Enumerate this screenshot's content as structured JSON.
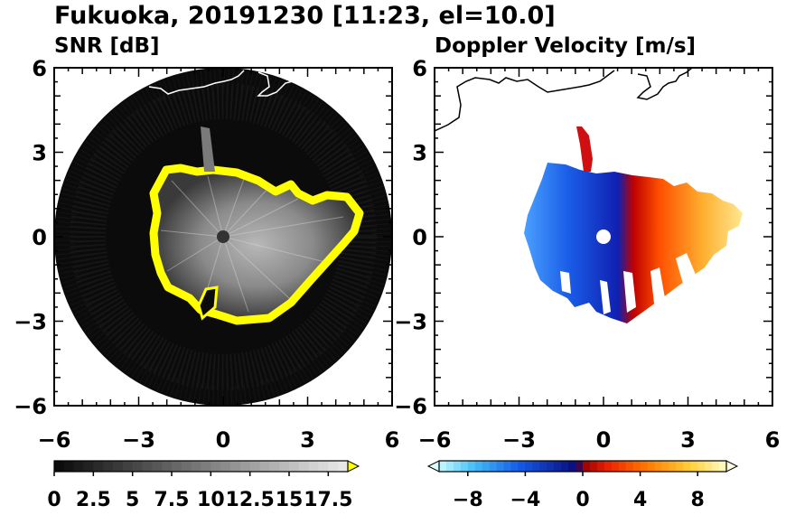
{
  "figure_title": "Fukuoka, 20191230 [11:23, el=10.0]",
  "panels": [
    {
      "title": "SNR [dB]"
    },
    {
      "title": "Doppler Velocity [m/s]"
    }
  ],
  "colors": {
    "snr_ring": "#ffff00",
    "snr_background": "#0a0a0a",
    "velocity_negative": "#1040d0",
    "velocity_positive": "#ff4000",
    "coastline_snr": "#ffffff",
    "coastline_vel": "#000000"
  },
  "chart_data": [
    {
      "type": "heatmap",
      "title": "SNR [dB]",
      "xlabel": "",
      "ylabel": "",
      "xlim": [
        -6,
        6
      ],
      "ylim": [
        -6,
        6
      ],
      "x_ticks": [
        "−6",
        "−3",
        "0",
        "3",
        "6"
      ],
      "y_ticks": [
        "6",
        "3",
        "0",
        "−3",
        "−6"
      ],
      "colorbar": {
        "ticks": [
          "0",
          "2.5",
          "5",
          "7.5",
          "10",
          "12.5",
          "15",
          "17.5"
        ],
        "values": [
          0,
          2.5,
          5,
          7.5,
          10,
          12.5,
          15,
          17.5
        ],
        "range": [
          0,
          18.75
        ],
        "extend": "max",
        "levels": 30
      }
    },
    {
      "type": "heatmap",
      "title": "Doppler Velocity [m/s]",
      "xlabel": "",
      "ylabel": "",
      "xlim": [
        -6,
        6
      ],
      "ylim": [
        -6,
        6
      ],
      "x_ticks": [
        "−6",
        "−3",
        "0",
        "3",
        "6"
      ],
      "y_ticks": [
        "6",
        "3",
        "0",
        "−3",
        "−6"
      ],
      "colorbar": {
        "ticks": [
          "−8",
          "−4",
          "0",
          "4",
          "8"
        ],
        "values": [
          -8,
          -4,
          0,
          4,
          8
        ],
        "range": [
          -10,
          10
        ],
        "extend": "both",
        "levels": 40
      }
    }
  ]
}
